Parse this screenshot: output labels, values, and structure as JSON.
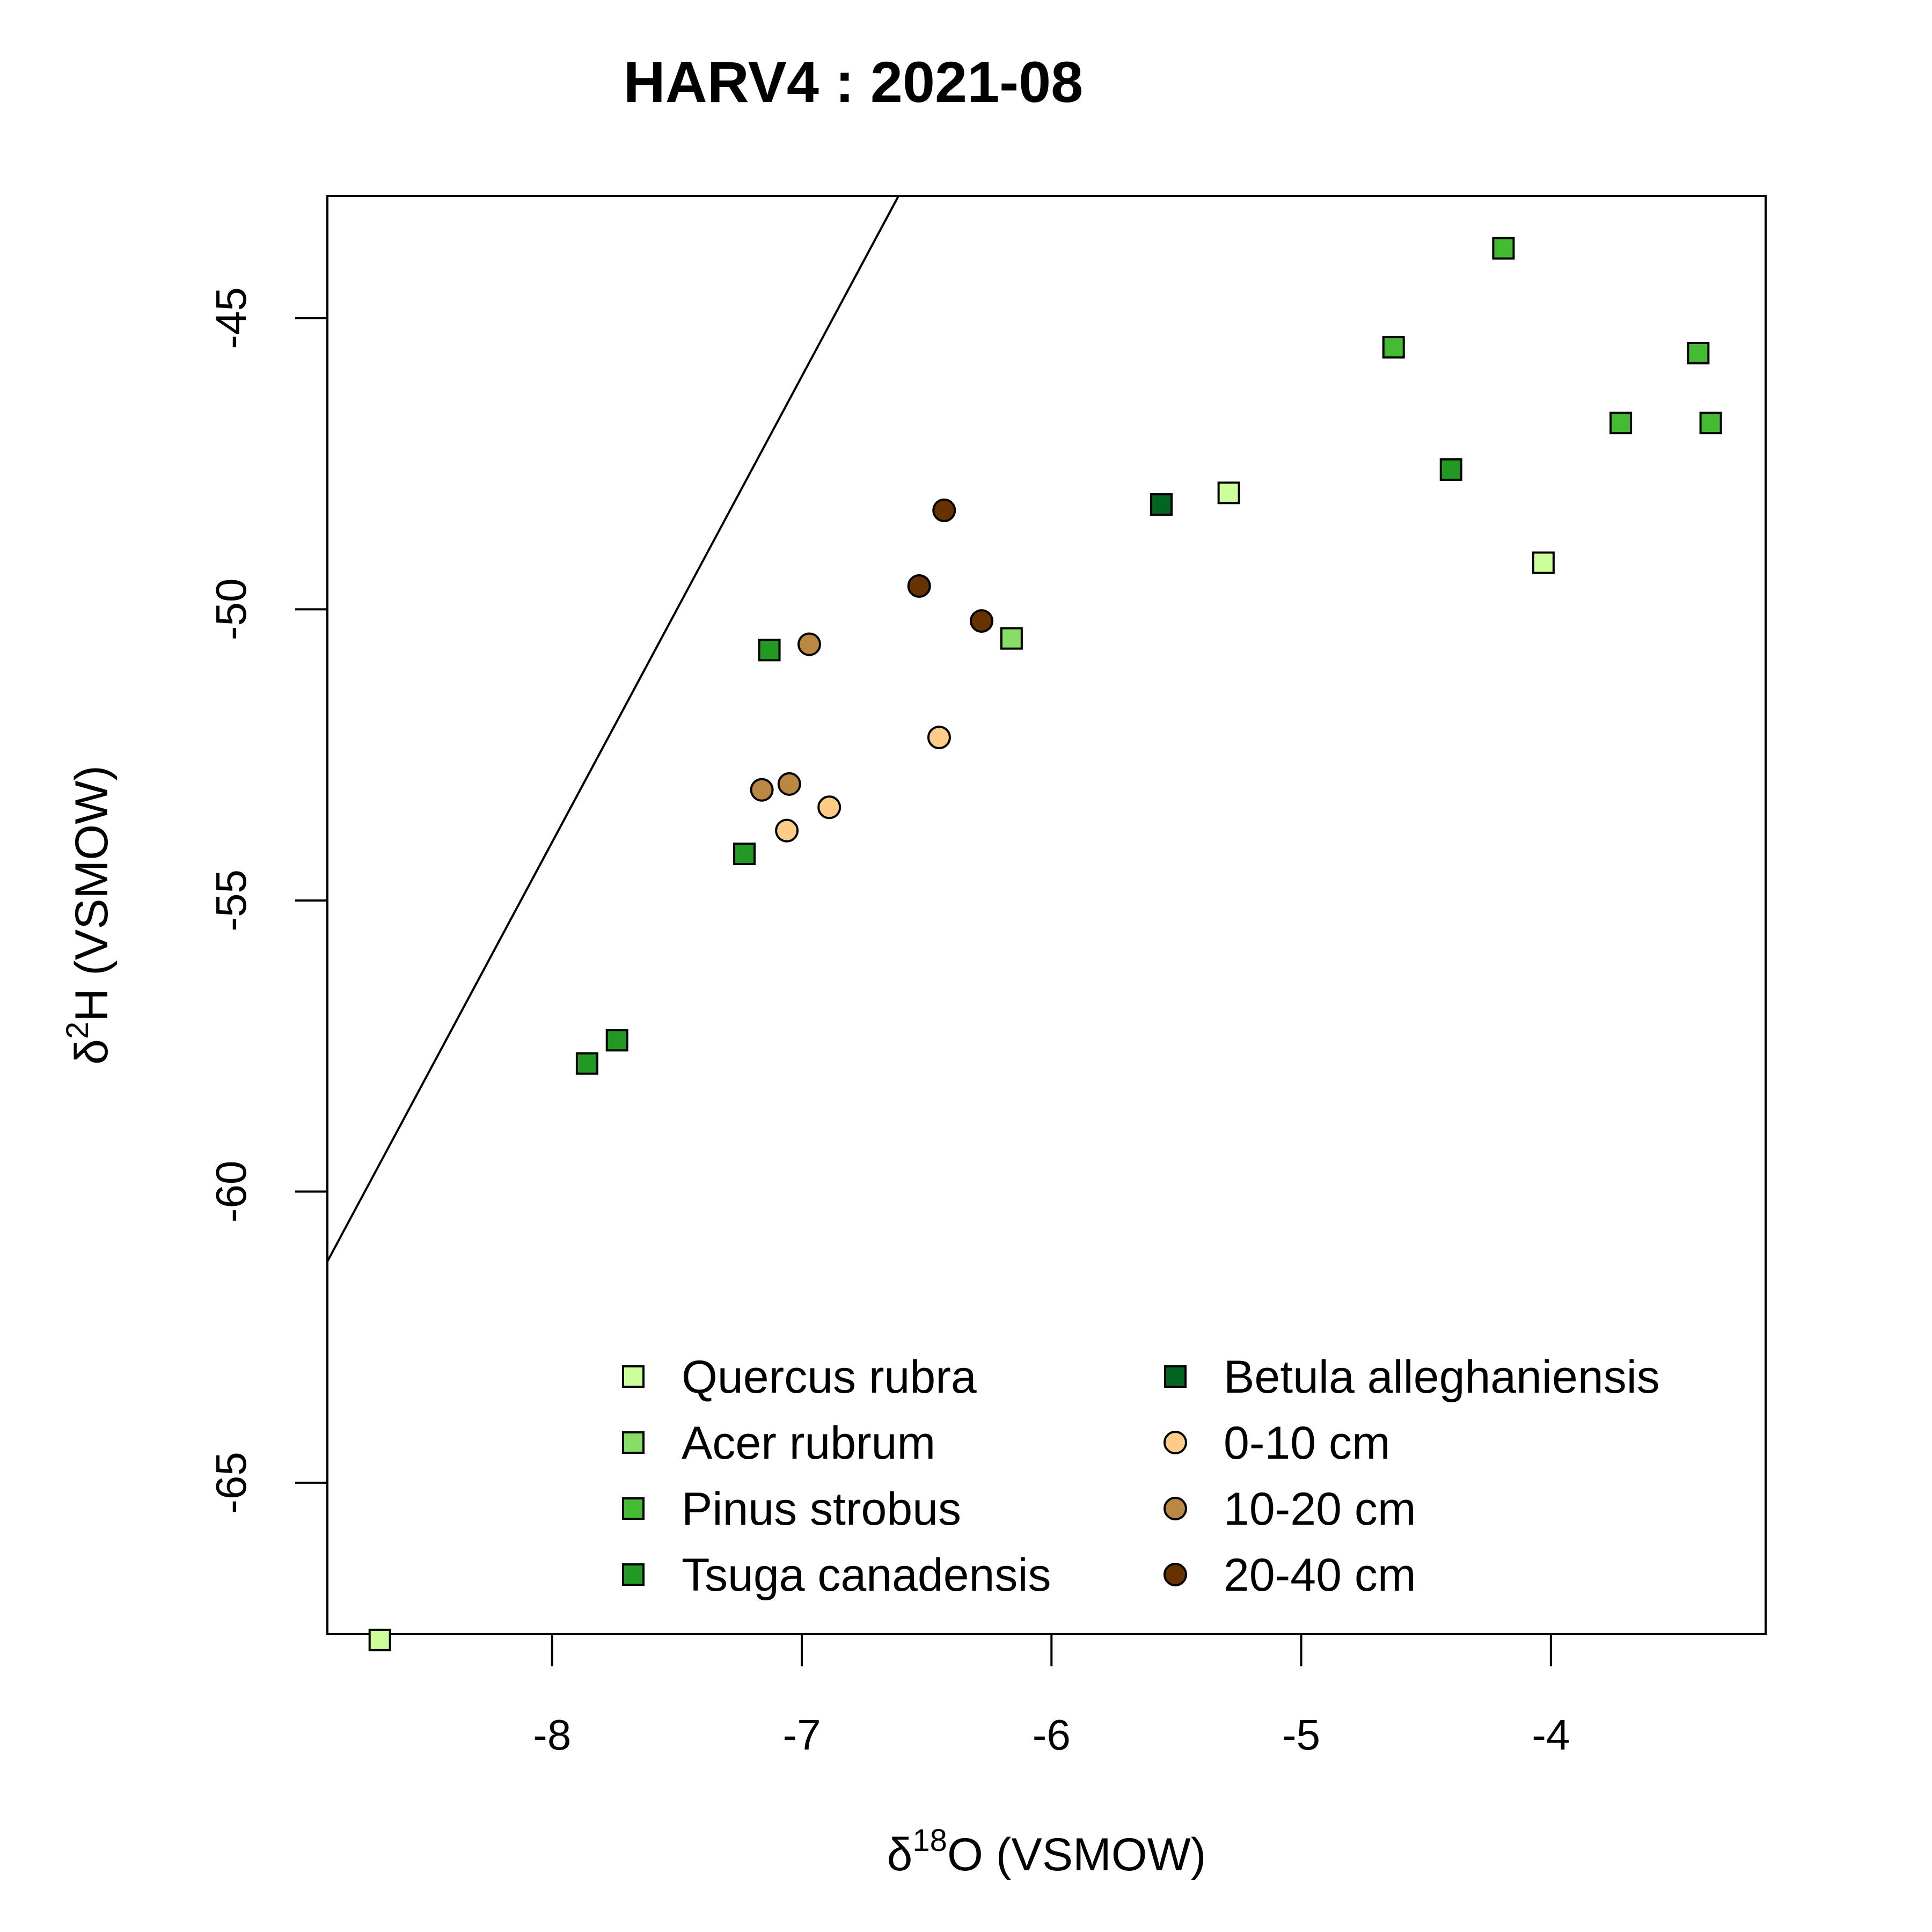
{
  "chart_data": {
    "type": "scatter",
    "title": "HARV4 : 2021-08",
    "xlabel": {
      "symbol": "δ",
      "superscript": "18",
      "rest": "O (VSMOW)"
    },
    "ylabel": {
      "symbol": "δ",
      "superscript": "2",
      "rest": "H (VSMOW)"
    },
    "xlim": [
      -8.9,
      -3.14
    ],
    "ylim": [
      -67.6,
      -42.9
    ],
    "xticks": [
      -8,
      -7,
      -6,
      -5,
      -4
    ],
    "yticks": [
      -45,
      -50,
      -55,
      -60,
      -65
    ],
    "reference_line": {
      "slope": 8,
      "intercept": 10
    },
    "grid": false,
    "legend_position": "bottom-right",
    "series": [
      {
        "name": "Quercus rubra",
        "marker": "square",
        "color": "#CCFF99",
        "points": [
          [
            -8.69,
            -67.7
          ],
          [
            -5.29,
            -48.0
          ],
          [
            -4.03,
            -49.2
          ]
        ]
      },
      {
        "name": "Acer rubrum",
        "marker": "square",
        "color": "#88DD66",
        "points": [
          [
            -6.16,
            -50.5
          ]
        ]
      },
      {
        "name": "Pinus strobus",
        "marker": "square",
        "color": "#44BB33",
        "points": [
          [
            -4.19,
            -43.8
          ],
          [
            -4.63,
            -45.5
          ],
          [
            -3.41,
            -45.6
          ],
          [
            -3.72,
            -46.8
          ],
          [
            -3.36,
            -46.8
          ]
        ]
      },
      {
        "name": "Tsuga canadensis",
        "marker": "square",
        "color": "#229922",
        "points": [
          [
            -7.13,
            -50.7
          ],
          [
            -7.23,
            -54.2
          ],
          [
            -7.86,
            -57.8
          ],
          [
            -7.74,
            -57.4
          ],
          [
            -4.4,
            -47.6
          ]
        ]
      },
      {
        "name": "Betula alleghaniensis",
        "marker": "square",
        "color": "#006622",
        "points": [
          [
            -5.56,
            -48.2
          ]
        ]
      },
      {
        "name": "0-10 cm",
        "marker": "circle",
        "color": "#FFCC88",
        "points": [
          [
            -6.45,
            -52.2
          ],
          [
            -7.06,
            -53.8
          ],
          [
            -6.89,
            -53.4
          ]
        ]
      },
      {
        "name": "10-20 cm",
        "marker": "circle",
        "color": "#BB8844",
        "points": [
          [
            -6.97,
            -50.6
          ],
          [
            -7.16,
            -53.1
          ],
          [
            -7.05,
            -53.0
          ]
        ]
      },
      {
        "name": "20-40 cm",
        "marker": "circle",
        "color": "#663300",
        "points": [
          [
            -6.43,
            -48.3
          ],
          [
            -6.53,
            -49.6
          ],
          [
            -6.28,
            -50.2
          ]
        ]
      }
    ]
  }
}
